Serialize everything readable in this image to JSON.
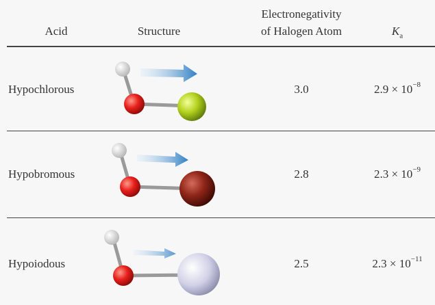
{
  "table": {
    "header": {
      "acid": "Acid",
      "structure": "Structure",
      "electronegativity": [
        "Electronegativity",
        "of Halogen Atom"
      ],
      "ka": {
        "symbol": "K",
        "subscript": "a"
      }
    },
    "rows": [
      {
        "acid": "Hypochlorous",
        "electronegativity": "3.0",
        "ka": {
          "mantissa": "2.9 × 10",
          "exponent": "−8"
        }
      },
      {
        "acid": "Hypobromous",
        "electronegativity": "2.8",
        "ka": {
          "mantissa": "2.3 × 10",
          "exponent": "−9"
        }
      },
      {
        "acid": "Hypoiodous",
        "electronegativity": "2.5",
        "ka": {
          "mantissa": "2.3 × 10",
          "exponent": "−11"
        }
      }
    ]
  }
}
